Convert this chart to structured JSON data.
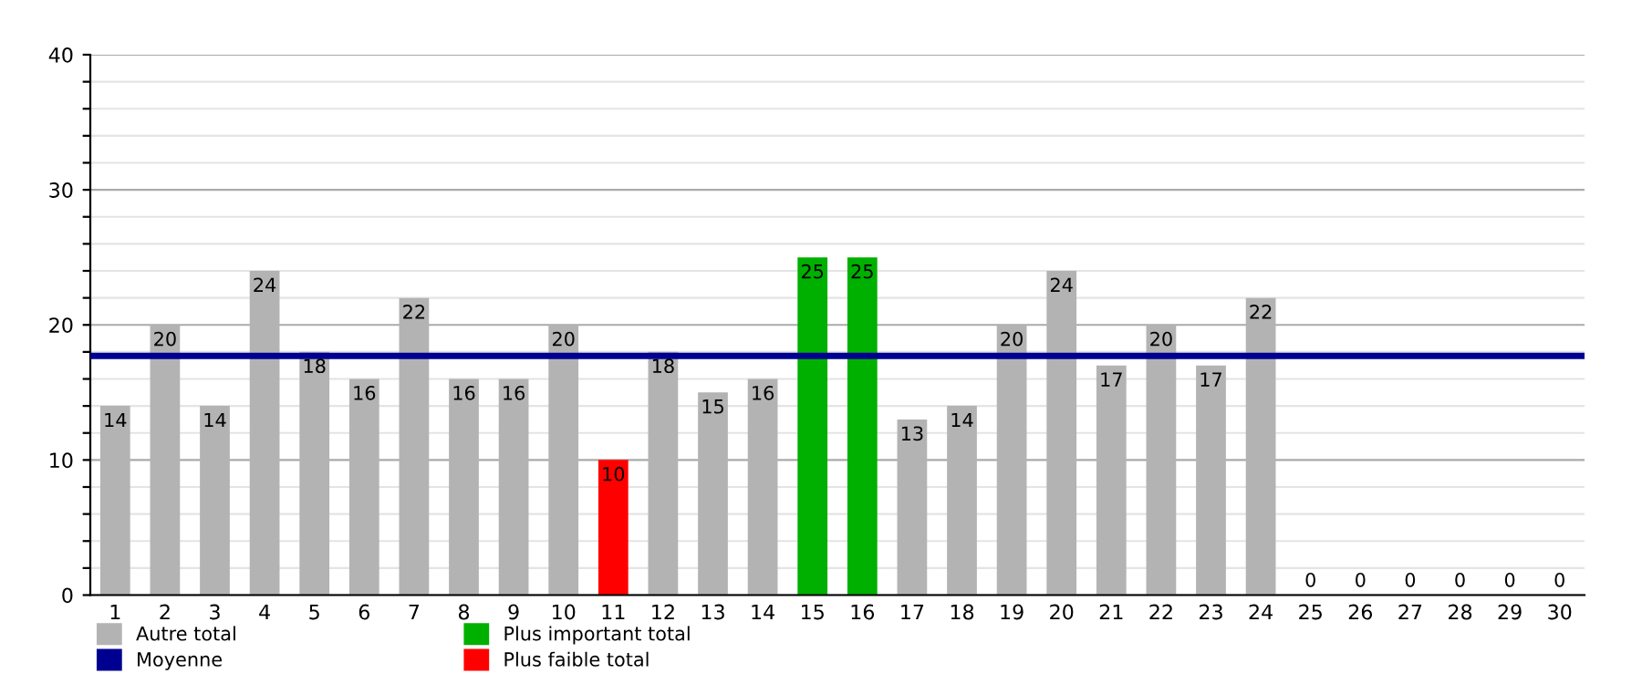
{
  "chart_data": {
    "type": "bar",
    "categories": [
      "1",
      "2",
      "3",
      "4",
      "5",
      "6",
      "7",
      "8",
      "9",
      "10",
      "11",
      "12",
      "13",
      "14",
      "15",
      "16",
      "17",
      "18",
      "19",
      "20",
      "21",
      "22",
      "23",
      "24",
      "25",
      "26",
      "27",
      "28",
      "29",
      "30"
    ],
    "series": [
      {
        "name": "Autre total",
        "color": "#b3b3b3",
        "values": [
          14,
          20,
          14,
          24,
          18,
          16,
          22,
          16,
          16,
          20,
          null,
          18,
          15,
          16,
          null,
          null,
          13,
          14,
          20,
          24,
          17,
          20,
          17,
          22,
          0,
          0,
          0,
          0,
          0,
          0
        ]
      },
      {
        "name": "Plus important total",
        "color": "#00b000",
        "values": [
          null,
          null,
          null,
          null,
          null,
          null,
          null,
          null,
          null,
          null,
          null,
          null,
          null,
          null,
          25,
          25,
          null,
          null,
          null,
          null,
          null,
          null,
          null,
          null,
          null,
          null,
          null,
          null,
          null,
          null
        ]
      },
      {
        "name": "Plus faible total",
        "color": "#ff0000",
        "values": [
          null,
          null,
          null,
          null,
          null,
          null,
          null,
          null,
          null,
          null,
          10,
          null,
          null,
          null,
          null,
          null,
          null,
          null,
          null,
          null,
          null,
          null,
          null,
          null,
          null,
          null,
          null,
          null,
          null,
          null
        ]
      }
    ],
    "ref_lines": [
      {
        "axis": "y",
        "value": 17.7,
        "label": "Moyenne",
        "color": "#000090"
      }
    ],
    "ylim": [
      0,
      40
    ],
    "yticks": [
      0,
      {
        "value": 2,
        "label": null
      },
      {
        "value": 4,
        "label": null
      },
      {
        "value": 6,
        "label": null
      },
      {
        "value": 8,
        "label": null
      },
      10,
      {
        "value": 12,
        "label": null
      },
      {
        "value": 14,
        "label": null
      },
      {
        "value": 16,
        "label": null
      },
      {
        "value": 18,
        "label": null
      },
      20,
      {
        "value": 22,
        "label": null
      },
      {
        "value": 24,
        "label": null
      },
      {
        "value": 26,
        "label": null
      },
      {
        "value": 28,
        "label": null
      },
      30,
      {
        "value": 32,
        "label": null
      },
      {
        "value": 34,
        "label": null
      },
      {
        "value": 36,
        "label": null
      },
      {
        "value": 38,
        "label": null
      },
      40
    ],
    "grid": "y",
    "data_labels": true,
    "legend": "bottom left"
  }
}
